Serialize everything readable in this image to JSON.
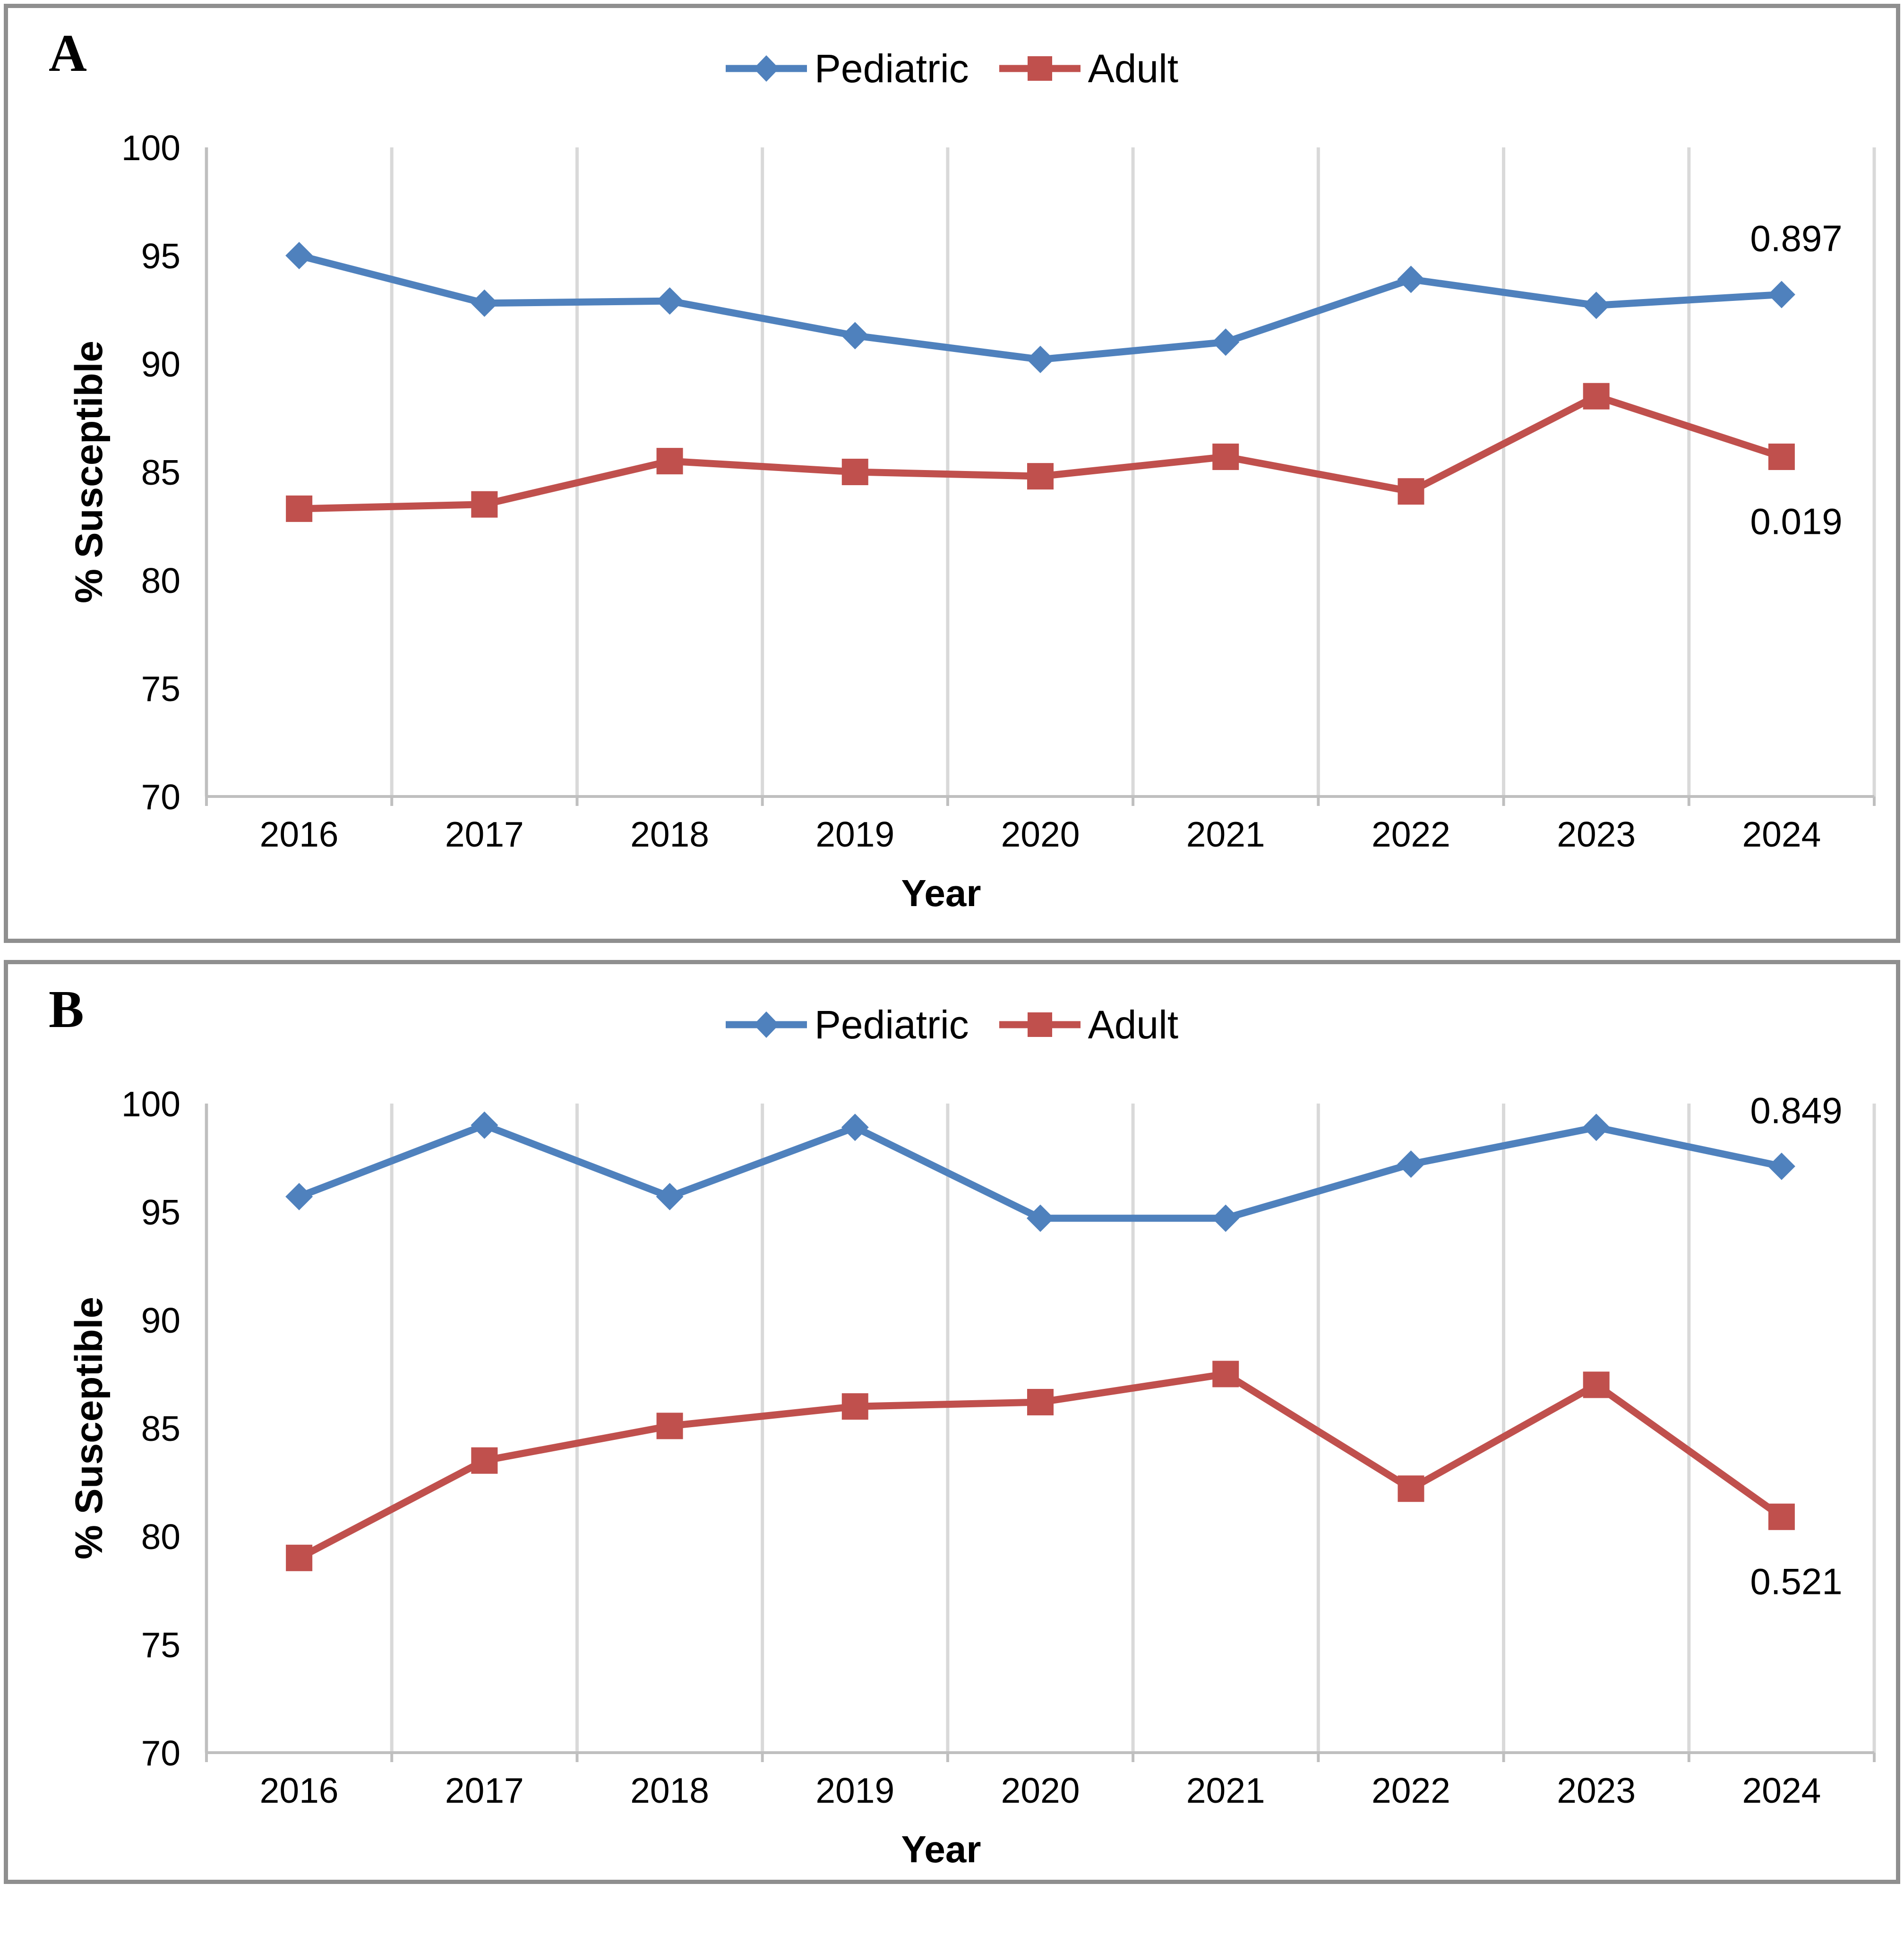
{
  "figure": {
    "panel_count": 2,
    "background": "#ffffff",
    "frame_color": "#8f8f8f",
    "gridline_color": "#d9d9d9",
    "axis_line_color": "#bfbfbf"
  },
  "chart_data": [
    {
      "type": "line",
      "panel_label": "A",
      "title": "",
      "xlabel": "Year",
      "ylabel": "% Susceptible",
      "categories": [
        "2016",
        "2017",
        "2018",
        "2019",
        "2020",
        "2021",
        "2022",
        "2023",
        "2024"
      ],
      "series": [
        {
          "name": "Pediatric",
          "color": "#4F81BD",
          "marker": "diamond",
          "values": [
            95.0,
            92.8,
            92.9,
            91.3,
            90.2,
            91.0,
            93.9,
            92.7,
            93.2
          ]
        },
        {
          "name": "Adult",
          "color": "#C0504D",
          "marker": "square",
          "values": [
            83.3,
            83.5,
            85.5,
            85.0,
            84.8,
            85.7,
            84.1,
            88.5,
            85.7
          ]
        }
      ],
      "annotations": [
        {
          "text": "0.897",
          "series": 0,
          "position": "above-last-point"
        },
        {
          "text": "0.019",
          "series": 1,
          "position": "below-last-point"
        }
      ],
      "ylim": [
        70,
        100
      ],
      "ytick_step": 5,
      "grid": "vertical-only",
      "legend_position": "top-center"
    },
    {
      "type": "line",
      "panel_label": "B",
      "title": "",
      "xlabel": "Year",
      "ylabel": "% Susceptible",
      "categories": [
        "2016",
        "2017",
        "2018",
        "2019",
        "2020",
        "2021",
        "2022",
        "2023",
        "2024"
      ],
      "series": [
        {
          "name": "Pediatric",
          "color": "#4F81BD",
          "marker": "diamond",
          "values": [
            95.7,
            99.0,
            95.7,
            98.9,
            94.7,
            94.7,
            97.2,
            98.9,
            97.1
          ]
        },
        {
          "name": "Adult",
          "color": "#C0504D",
          "marker": "square",
          "values": [
            79.0,
            83.5,
            85.1,
            86.0,
            86.2,
            87.5,
            82.2,
            87.0,
            80.9
          ]
        }
      ],
      "annotations": [
        {
          "text": "0.849",
          "series": 0,
          "position": "above-last-point"
        },
        {
          "text": "0.521",
          "series": 1,
          "position": "below-last-point"
        }
      ],
      "ylim": [
        70,
        100
      ],
      "ytick_step": 5,
      "grid": "vertical-only",
      "legend_position": "top-center"
    }
  ]
}
